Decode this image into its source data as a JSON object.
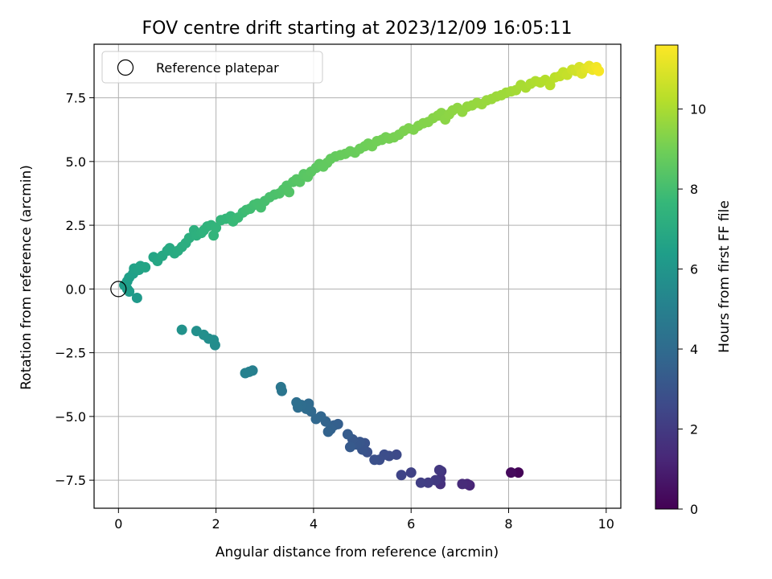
{
  "chart_data": {
    "type": "scatter",
    "title": "FOV centre drift starting at 2023/12/09 16:05:11",
    "xlabel": "Angular distance from reference (arcmin)",
    "ylabel": "Rotation from reference (arcmin)",
    "xlim": [
      -0.5,
      10.3
    ],
    "ylim": [
      -8.6,
      9.6
    ],
    "xticks": [
      0,
      2,
      4,
      6,
      8,
      10
    ],
    "yticks": [
      -7.5,
      -5.0,
      -2.5,
      0.0,
      2.5,
      5.0,
      7.5
    ],
    "xtick_labels": [
      "0",
      "2",
      "4",
      "6",
      "8",
      "10"
    ],
    "ytick_labels": [
      "−7.5",
      "−5.0",
      "−2.5",
      "0.0",
      "2.5",
      "5.0",
      "7.5"
    ],
    "grid": true,
    "colormap": "viridis",
    "colorbar": {
      "label": "Hours from first FF file",
      "range": [
        0,
        11.6
      ],
      "ticks": [
        0,
        2,
        4,
        6,
        8,
        10
      ],
      "tick_labels": [
        "0",
        "2",
        "4",
        "6",
        "8",
        "10"
      ]
    },
    "legend": {
      "placement": "top-left",
      "entries": [
        {
          "label": "Reference platepar",
          "marker": "open-circle",
          "x": 0,
          "y": 0
        }
      ]
    },
    "points": [
      [
        8.2,
        -7.2,
        0.1
      ],
      [
        8.05,
        -7.2,
        0.3
      ],
      [
        7.2,
        -7.7,
        1.2
      ],
      [
        7.15,
        -7.65,
        1.3
      ],
      [
        7.05,
        -7.65,
        1.4
      ],
      [
        6.6,
        -7.65,
        1.6
      ],
      [
        6.6,
        -7.45,
        1.7
      ],
      [
        6.62,
        -7.15,
        1.8
      ],
      [
        6.58,
        -7.1,
        1.9
      ],
      [
        6.5,
        -7.5,
        2.0
      ],
      [
        6.35,
        -7.6,
        2.1
      ],
      [
        6.2,
        -7.6,
        2.2
      ],
      [
        6.0,
        -7.2,
        2.3
      ],
      [
        5.8,
        -7.3,
        2.4
      ],
      [
        5.7,
        -6.5,
        2.6
      ],
      [
        5.55,
        -6.55,
        2.7
      ],
      [
        5.45,
        -6.5,
        2.75
      ],
      [
        5.35,
        -6.7,
        2.8
      ],
      [
        5.25,
        -6.7,
        2.85
      ],
      [
        5.1,
        -6.4,
        2.9
      ],
      [
        5.05,
        -6.05,
        3.0
      ],
      [
        5.0,
        -6.3,
        3.05
      ],
      [
        4.95,
        -6.0,
        3.1
      ],
      [
        4.88,
        -6.1,
        3.15
      ],
      [
        4.8,
        -5.9,
        3.2
      ],
      [
        4.75,
        -6.2,
        3.3
      ],
      [
        4.7,
        -5.7,
        3.35
      ],
      [
        4.5,
        -5.3,
        3.5
      ],
      [
        4.42,
        -5.35,
        3.55
      ],
      [
        4.35,
        -5.5,
        3.6
      ],
      [
        4.3,
        -5.6,
        3.65
      ],
      [
        4.25,
        -5.2,
        3.7
      ],
      [
        4.15,
        -5.0,
        3.8
      ],
      [
        4.05,
        -5.1,
        3.85
      ],
      [
        3.95,
        -4.8,
        3.9
      ],
      [
        3.9,
        -4.5,
        4.0
      ],
      [
        3.85,
        -4.7,
        4.05
      ],
      [
        3.75,
        -4.55,
        4.1
      ],
      [
        3.68,
        -4.65,
        4.15
      ],
      [
        3.65,
        -4.45,
        4.2
      ],
      [
        3.35,
        -4.0,
        4.5
      ],
      [
        3.33,
        -3.85,
        4.55
      ],
      [
        2.75,
        -3.2,
        5.0
      ],
      [
        2.68,
        -3.25,
        5.05
      ],
      [
        2.6,
        -3.3,
        5.1
      ],
      [
        1.98,
        -2.2,
        5.6
      ],
      [
        1.95,
        -2.0,
        5.65
      ],
      [
        1.85,
        -1.95,
        5.7
      ],
      [
        1.75,
        -1.8,
        5.75
      ],
      [
        1.6,
        -1.65,
        5.8
      ],
      [
        1.3,
        -1.6,
        5.9
      ],
      [
        0.38,
        -0.35,
        6.2
      ],
      [
        0.22,
        -0.1,
        6.3
      ],
      [
        0.18,
        0.0,
        6.35
      ],
      [
        0.12,
        0.15,
        6.4
      ],
      [
        0.18,
        0.3,
        6.45
      ],
      [
        0.22,
        0.45,
        6.5
      ],
      [
        0.3,
        0.6,
        6.55
      ],
      [
        0.32,
        0.8,
        6.6
      ],
      [
        0.42,
        0.75,
        6.65
      ],
      [
        0.45,
        0.9,
        6.7
      ],
      [
        0.55,
        0.85,
        6.75
      ],
      [
        0.72,
        1.25,
        6.8
      ],
      [
        0.8,
        1.1,
        6.85
      ],
      [
        0.9,
        1.3,
        6.9
      ],
      [
        1.0,
        1.5,
        6.95
      ],
      [
        1.05,
        1.6,
        7.0
      ],
      [
        1.15,
        1.4,
        7.05
      ],
      [
        1.22,
        1.5,
        7.1
      ],
      [
        1.3,
        1.65,
        7.15
      ],
      [
        1.38,
        1.8,
        7.2
      ],
      [
        1.45,
        2.0,
        7.25
      ],
      [
        1.55,
        2.3,
        7.3
      ],
      [
        1.6,
        2.1,
        7.35
      ],
      [
        1.7,
        2.2,
        7.4
      ],
      [
        1.75,
        2.3,
        7.45
      ],
      [
        1.82,
        2.45,
        7.5
      ],
      [
        1.9,
        2.5,
        7.55
      ],
      [
        1.95,
        2.1,
        7.58
      ],
      [
        2.0,
        2.4,
        7.6
      ],
      [
        2.1,
        2.7,
        7.65
      ],
      [
        2.2,
        2.75,
        7.7
      ],
      [
        2.3,
        2.85,
        7.75
      ],
      [
        2.35,
        2.65,
        7.8
      ],
      [
        2.45,
        2.8,
        7.85
      ],
      [
        2.55,
        3.0,
        7.9
      ],
      [
        2.62,
        3.1,
        7.95
      ],
      [
        2.7,
        3.15,
        8.0
      ],
      [
        2.78,
        3.3,
        8.05
      ],
      [
        2.85,
        3.35,
        8.1
      ],
      [
        2.92,
        3.2,
        8.12
      ],
      [
        3.0,
        3.45,
        8.15
      ],
      [
        3.1,
        3.6,
        8.2
      ],
      [
        3.2,
        3.7,
        8.25
      ],
      [
        3.3,
        3.75,
        8.3
      ],
      [
        3.38,
        3.9,
        8.35
      ],
      [
        3.45,
        4.05,
        8.4
      ],
      [
        3.5,
        3.8,
        8.42
      ],
      [
        3.58,
        4.2,
        8.45
      ],
      [
        3.65,
        4.3,
        8.5
      ],
      [
        3.72,
        4.2,
        8.52
      ],
      [
        3.8,
        4.5,
        8.55
      ],
      [
        3.88,
        4.4,
        8.6
      ],
      [
        3.95,
        4.6,
        8.62
      ],
      [
        4.05,
        4.75,
        8.65
      ],
      [
        4.12,
        4.9,
        8.7
      ],
      [
        4.2,
        4.8,
        8.72
      ],
      [
        4.28,
        4.95,
        8.75
      ],
      [
        4.35,
        5.1,
        8.78
      ],
      [
        4.45,
        5.2,
        8.8
      ],
      [
        4.55,
        5.25,
        8.85
      ],
      [
        4.65,
        5.3,
        8.88
      ],
      [
        4.75,
        5.4,
        8.9
      ],
      [
        4.85,
        5.35,
        8.92
      ],
      [
        4.95,
        5.5,
        8.95
      ],
      [
        5.05,
        5.6,
        9.0
      ],
      [
        5.12,
        5.7,
        9.02
      ],
      [
        5.2,
        5.6,
        9.05
      ],
      [
        5.3,
        5.8,
        9.08
      ],
      [
        5.4,
        5.85,
        9.1
      ],
      [
        5.48,
        5.95,
        9.12
      ],
      [
        5.55,
        5.9,
        9.15
      ],
      [
        5.65,
        5.95,
        9.18
      ],
      [
        5.75,
        6.05,
        9.2
      ],
      [
        5.85,
        6.2,
        9.25
      ],
      [
        5.95,
        6.3,
        9.3
      ],
      [
        6.05,
        6.25,
        9.32
      ],
      [
        6.15,
        6.4,
        9.35
      ],
      [
        6.25,
        6.5,
        9.4
      ],
      [
        6.35,
        6.55,
        9.42
      ],
      [
        6.45,
        6.7,
        9.45
      ],
      [
        6.55,
        6.8,
        9.5
      ],
      [
        6.62,
        6.9,
        9.52
      ],
      [
        6.7,
        6.65,
        9.55
      ],
      [
        6.78,
        6.85,
        9.58
      ],
      [
        6.85,
        7.0,
        9.6
      ],
      [
        6.95,
        7.1,
        9.62
      ],
      [
        7.05,
        6.95,
        9.65
      ],
      [
        7.15,
        7.15,
        9.7
      ],
      [
        7.25,
        7.2,
        9.72
      ],
      [
        7.35,
        7.3,
        9.75
      ],
      [
        7.45,
        7.25,
        9.78
      ],
      [
        7.55,
        7.4,
        9.8
      ],
      [
        7.65,
        7.45,
        9.82
      ],
      [
        7.75,
        7.55,
        9.85
      ],
      [
        7.85,
        7.6,
        9.88
      ],
      [
        7.95,
        7.7,
        9.9
      ],
      [
        8.05,
        7.75,
        9.95
      ],
      [
        8.15,
        7.8,
        10.0
      ],
      [
        8.25,
        8.0,
        10.05
      ],
      [
        8.35,
        7.9,
        10.1
      ],
      [
        8.45,
        8.05,
        10.15
      ],
      [
        8.55,
        8.15,
        10.2
      ],
      [
        8.65,
        8.1,
        10.25
      ],
      [
        8.75,
        8.2,
        10.3
      ],
      [
        8.85,
        8.0,
        10.35
      ],
      [
        8.95,
        8.3,
        10.4
      ],
      [
        9.05,
        8.35,
        10.5
      ],
      [
        9.12,
        8.5,
        10.55
      ],
      [
        9.2,
        8.4,
        10.6
      ],
      [
        9.3,
        8.6,
        10.7
      ],
      [
        9.38,
        8.55,
        10.8
      ],
      [
        9.45,
        8.7,
        10.9
      ],
      [
        9.5,
        8.45,
        11.0
      ],
      [
        9.58,
        8.65,
        11.1
      ],
      [
        9.65,
        8.75,
        11.2
      ],
      [
        9.72,
        8.6,
        11.3
      ],
      [
        9.8,
        8.7,
        11.4
      ],
      [
        9.85,
        8.55,
        11.5
      ]
    ]
  }
}
